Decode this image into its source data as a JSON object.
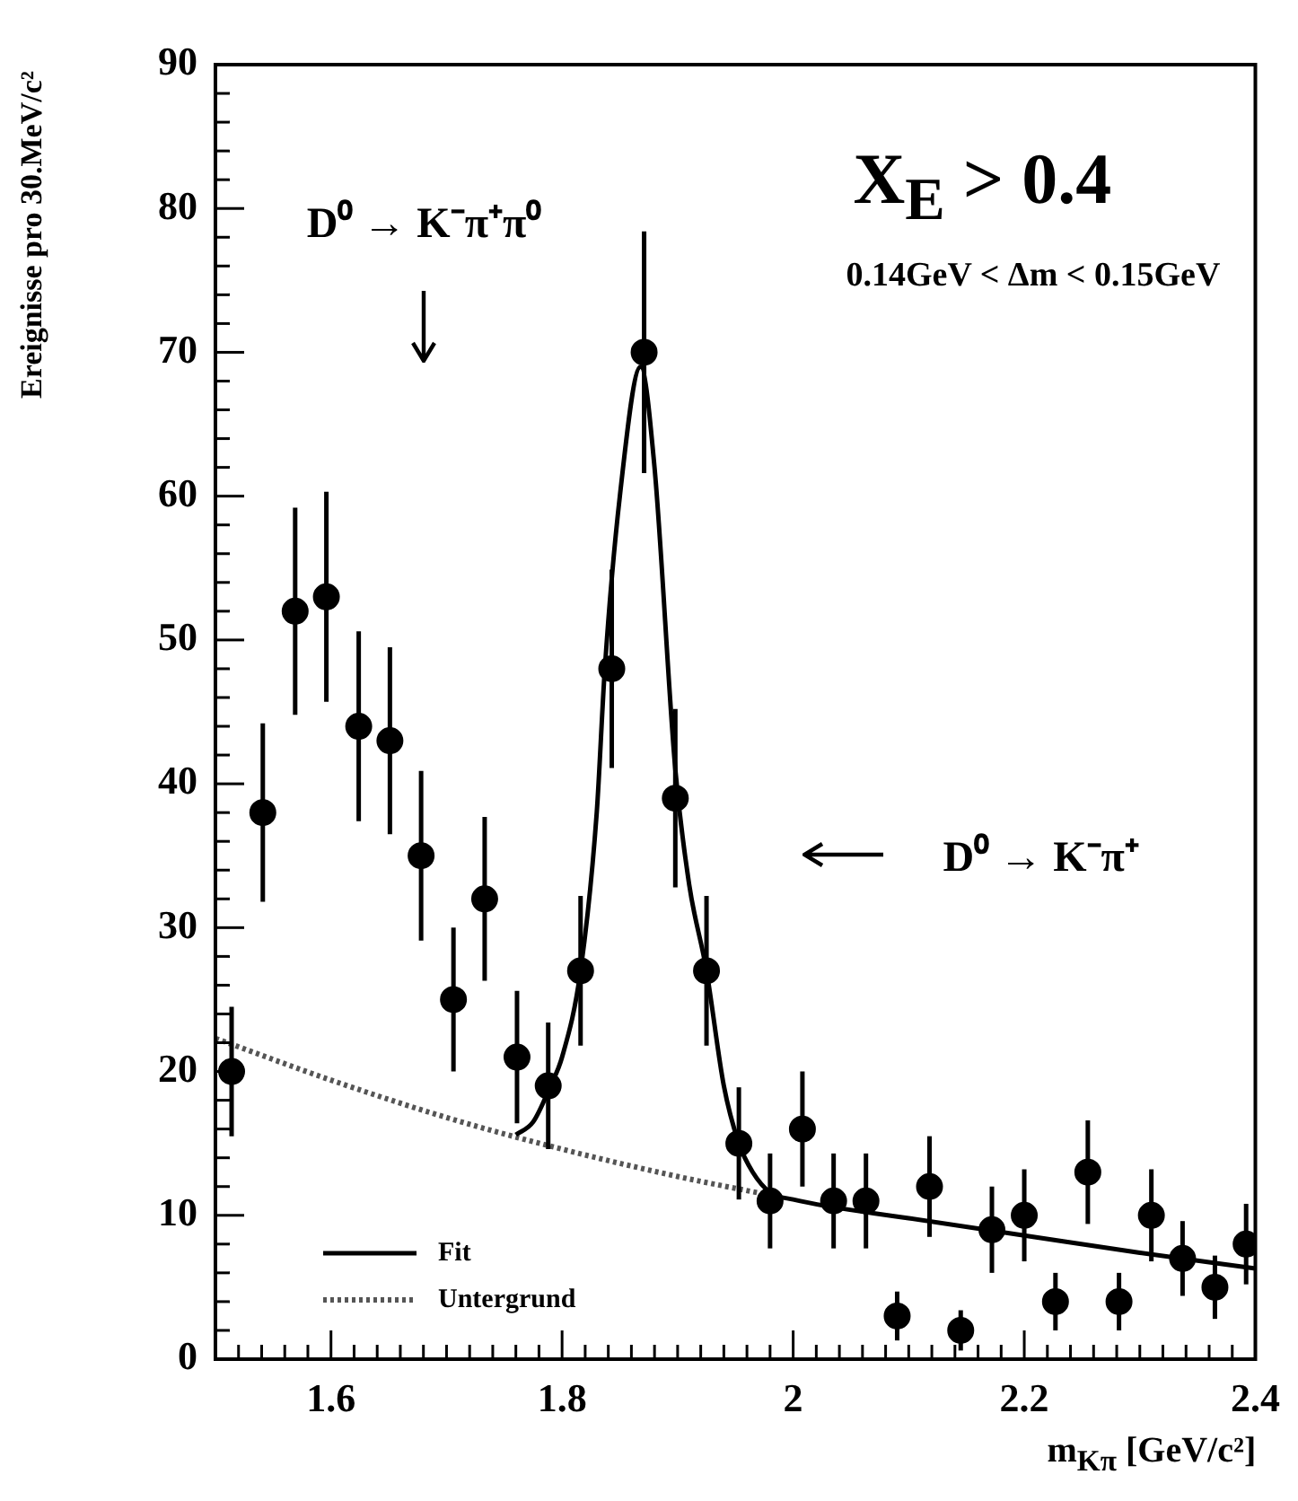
{
  "chart_data": {
    "type": "scatter",
    "xlabel": "m$_{Kπ}$ [GeV/c²]",
    "ylabel": "Ereignisse pro 30.MeV/c²",
    "legend": "bottom left",
    "xlim": [
      1.5,
      2.4
    ],
    "ylim": [
      0,
      90
    ],
    "xticks": [
      {
        "value": 1.52,
        "label": null
      },
      {
        "value": 1.54,
        "label": null
      },
      {
        "value": 1.56,
        "label": null
      },
      {
        "value": 1.58,
        "label": null
      },
      1.6,
      {
        "value": 1.62,
        "label": null
      },
      {
        "value": 1.64,
        "label": null
      },
      {
        "value": 1.66,
        "label": null
      },
      {
        "value": 1.68,
        "label": null
      },
      {
        "value": 1.7,
        "label": null
      },
      {
        "value": 1.72,
        "label": null
      },
      {
        "value": 1.74,
        "label": null
      },
      {
        "value": 1.76,
        "label": null
      },
      {
        "value": 1.78,
        "label": null
      },
      1.8,
      {
        "value": 1.82,
        "label": null
      },
      {
        "value": 1.84,
        "label": null
      },
      {
        "value": 1.86,
        "label": null
      },
      {
        "value": 1.88,
        "label": null
      },
      {
        "value": 1.9,
        "label": null
      },
      {
        "value": 1.92,
        "label": null
      },
      {
        "value": 1.94,
        "label": null
      },
      {
        "value": 1.96,
        "label": null
      },
      {
        "value": 1.98,
        "label": null
      },
      2,
      {
        "value": 2.02,
        "label": null
      },
      {
        "value": 2.04,
        "label": null
      },
      {
        "value": 2.06,
        "label": null
      },
      {
        "value": 2.08,
        "label": null
      },
      {
        "value": 2.1,
        "label": null
      },
      {
        "value": 2.12,
        "label": null
      },
      {
        "value": 2.14,
        "label": null
      },
      {
        "value": 2.16,
        "label": null
      },
      {
        "value": 2.18,
        "label": null
      },
      2.2,
      {
        "value": 2.22,
        "label": null
      },
      {
        "value": 2.24,
        "label": null
      },
      {
        "value": 2.26,
        "label": null
      },
      {
        "value": 2.28,
        "label": null
      },
      {
        "value": 2.3,
        "label": null
      },
      {
        "value": 2.32,
        "label": null
      },
      {
        "value": 2.34,
        "label": null
      },
      {
        "value": 2.36,
        "label": null
      },
      {
        "value": 2.38,
        "label": null
      },
      2.4
    ],
    "yticks": [
      0,
      {
        "value": 2,
        "label": null
      },
      {
        "value": 4,
        "label": null
      },
      {
        "value": 6,
        "label": null
      },
      {
        "value": 8,
        "label": null
      },
      10,
      {
        "value": 12,
        "label": null
      },
      {
        "value": 14,
        "label": null
      },
      {
        "value": 16,
        "label": null
      },
      {
        "value": 18,
        "label": null
      },
      20,
      {
        "value": 22,
        "label": null
      },
      {
        "value": 24,
        "label": null
      },
      {
        "value": 26,
        "label": null
      },
      {
        "value": 28,
        "label": null
      },
      30,
      {
        "value": 32,
        "label": null
      },
      {
        "value": 34,
        "label": null
      },
      {
        "value": 36,
        "label": null
      },
      {
        "value": 38,
        "label": null
      },
      40,
      {
        "value": 42,
        "label": null
      },
      {
        "value": 44,
        "label": null
      },
      {
        "value": 46,
        "label": null
      },
      {
        "value": 48,
        "label": null
      },
      50,
      {
        "value": 52,
        "label": null
      },
      {
        "value": 54,
        "label": null
      },
      {
        "value": 56,
        "label": null
      },
      {
        "value": 58,
        "label": null
      },
      60,
      {
        "value": 62,
        "label": null
      },
      {
        "value": 64,
        "label": null
      },
      {
        "value": 66,
        "label": null
      },
      {
        "value": 68,
        "label": null
      },
      70,
      {
        "value": 72,
        "label": null
      },
      {
        "value": 74,
        "label": null
      },
      {
        "value": 76,
        "label": null
      },
      {
        "value": 78,
        "label": null
      },
      80,
      {
        "value": 82,
        "label": null
      },
      {
        "value": 84,
        "label": null
      },
      {
        "value": 86,
        "label": null
      },
      {
        "value": 88,
        "label": null
      },
      90
    ],
    "series": [
      {
        "marker": "circle",
        "color": "#000000",
        "x": [
          1.514,
          1.541,
          1.569,
          1.596,
          1.624,
          1.651,
          1.678,
          1.706,
          1.733,
          1.761,
          1.788,
          1.816,
          1.843,
          1.871,
          1.898,
          1.925,
          1.953,
          1.98,
          2.008,
          2.035,
          2.063,
          2.09,
          2.118,
          2.145,
          2.172,
          2.2,
          2.227,
          2.255,
          2.282,
          2.31,
          2.337,
          2.365,
          2.392
        ],
        "values": [
          20,
          38,
          52,
          53,
          44,
          43,
          35,
          25,
          32,
          21,
          19,
          27,
          48,
          70,
          39,
          27,
          15,
          11,
          16,
          11,
          11,
          3,
          12,
          2,
          9,
          10,
          4,
          13,
          4,
          10,
          7,
          5,
          8
        ],
        "errors": [
          4.5,
          6.2,
          7.2,
          7.3,
          6.6,
          6.5,
          5.9,
          5,
          5.7,
          4.6,
          4.4,
          5.2,
          6.9,
          8.4,
          6.2,
          5.2,
          3.9,
          3.3,
          4,
          3.3,
          3.3,
          1.7,
          3.5,
          1.4,
          3,
          3.2,
          2,
          3.6,
          2,
          3.2,
          2.6,
          2.2,
          2.8
        ]
      },
      {
        "type": "line",
        "marker": "none",
        "name": "Fit",
        "color": "#000000",
        "line_style": "solid",
        "x": [
          1.76,
          1.775,
          1.79,
          1.8,
          1.816,
          1.83,
          1.837,
          1.85,
          1.868,
          1.88,
          1.898,
          1.91,
          1.925,
          1.94,
          1.953,
          1.965,
          1.98,
          2.0,
          2.1,
          2.2,
          2.3,
          2.4
        ],
        "values": [
          15.6,
          16.5,
          19,
          21,
          27,
          38,
          48,
          60,
          69,
          62,
          41,
          33,
          27,
          19,
          15,
          13,
          11.6,
          11.1,
          9.8,
          8.6,
          7.4,
          6.3
        ]
      },
      {
        "type": "line",
        "marker": "none",
        "name": "Untergrund",
        "color": "#555555",
        "line_style": "dotted",
        "x": [
          1.5,
          1.6,
          1.7,
          1.8,
          1.9,
          1.98
        ],
        "values": [
          22.3,
          19.4,
          16.8,
          14.6,
          12.7,
          11.4
        ]
      }
    ],
    "annotations": [
      "X$_{E}$ > 0.4",
      "0.14GeV < Δm < 0.15GeV",
      "D⁰ → K⁻π⁺π⁰",
      "D⁰ → K⁻π⁺"
    ]
  }
}
